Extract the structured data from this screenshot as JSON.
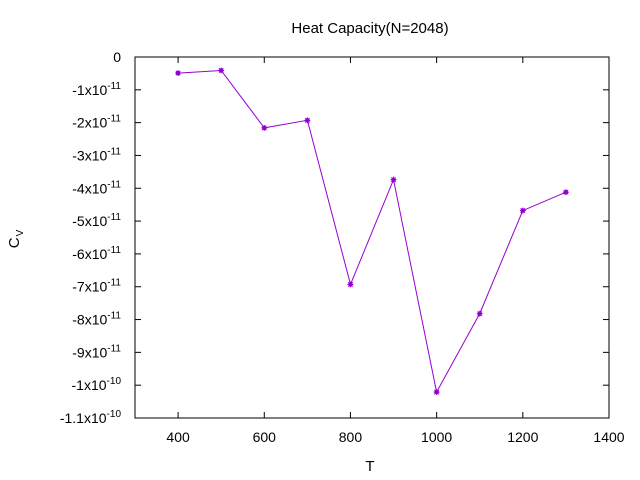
{
  "chart_data": {
    "type": "line",
    "title": "Heat Capacity(N=2048)",
    "xlabel": "T",
    "ylabel": {
      "main": "C",
      "sub": "V"
    },
    "xlim": [
      300,
      1400
    ],
    "ylim": [
      -1.1e-10,
      0
    ],
    "grid": false,
    "x_ticks": [
      {
        "value": 400,
        "label": "400"
      },
      {
        "value": 600,
        "label": "600"
      },
      {
        "value": 800,
        "label": "800"
      },
      {
        "value": 1000,
        "label": "1000"
      },
      {
        "value": 1200,
        "label": "1200"
      },
      {
        "value": 1400,
        "label": "1400"
      }
    ],
    "y_ticks": [
      {
        "value": 0,
        "mantissa": "0",
        "exponent": ""
      },
      {
        "value": -1e-11,
        "mantissa": "-1x10",
        "exponent": "-11"
      },
      {
        "value": -2e-11,
        "mantissa": "-2x10",
        "exponent": "-11"
      },
      {
        "value": -3e-11,
        "mantissa": "-3x10",
        "exponent": "-11"
      },
      {
        "value": -4e-11,
        "mantissa": "-4x10",
        "exponent": "-11"
      },
      {
        "value": -5e-11,
        "mantissa": "-5x10",
        "exponent": "-11"
      },
      {
        "value": -6e-11,
        "mantissa": "-6x10",
        "exponent": "-11"
      },
      {
        "value": -7e-11,
        "mantissa": "-7x10",
        "exponent": "-11"
      },
      {
        "value": -8e-11,
        "mantissa": "-8x10",
        "exponent": "-11"
      },
      {
        "value": -9e-11,
        "mantissa": "-9x10",
        "exponent": "-11"
      },
      {
        "value": -1e-10,
        "mantissa": "-1x10",
        "exponent": "-10"
      },
      {
        "value": -1.1e-10,
        "mantissa": "-1.1x10",
        "exponent": "-10"
      }
    ],
    "series": [
      {
        "color": "#9400d3",
        "x": [
          400,
          500,
          600,
          700,
          800,
          900,
          1000,
          1100,
          1200,
          1300
        ],
        "values": [
          -4.9e-12,
          -4.1e-12,
          -2.16e-11,
          -1.93e-11,
          -6.93e-11,
          -3.74e-11,
          -1.021e-10,
          -7.82e-11,
          -4.68e-11,
          -4.12e-11
        ]
      }
    ]
  }
}
